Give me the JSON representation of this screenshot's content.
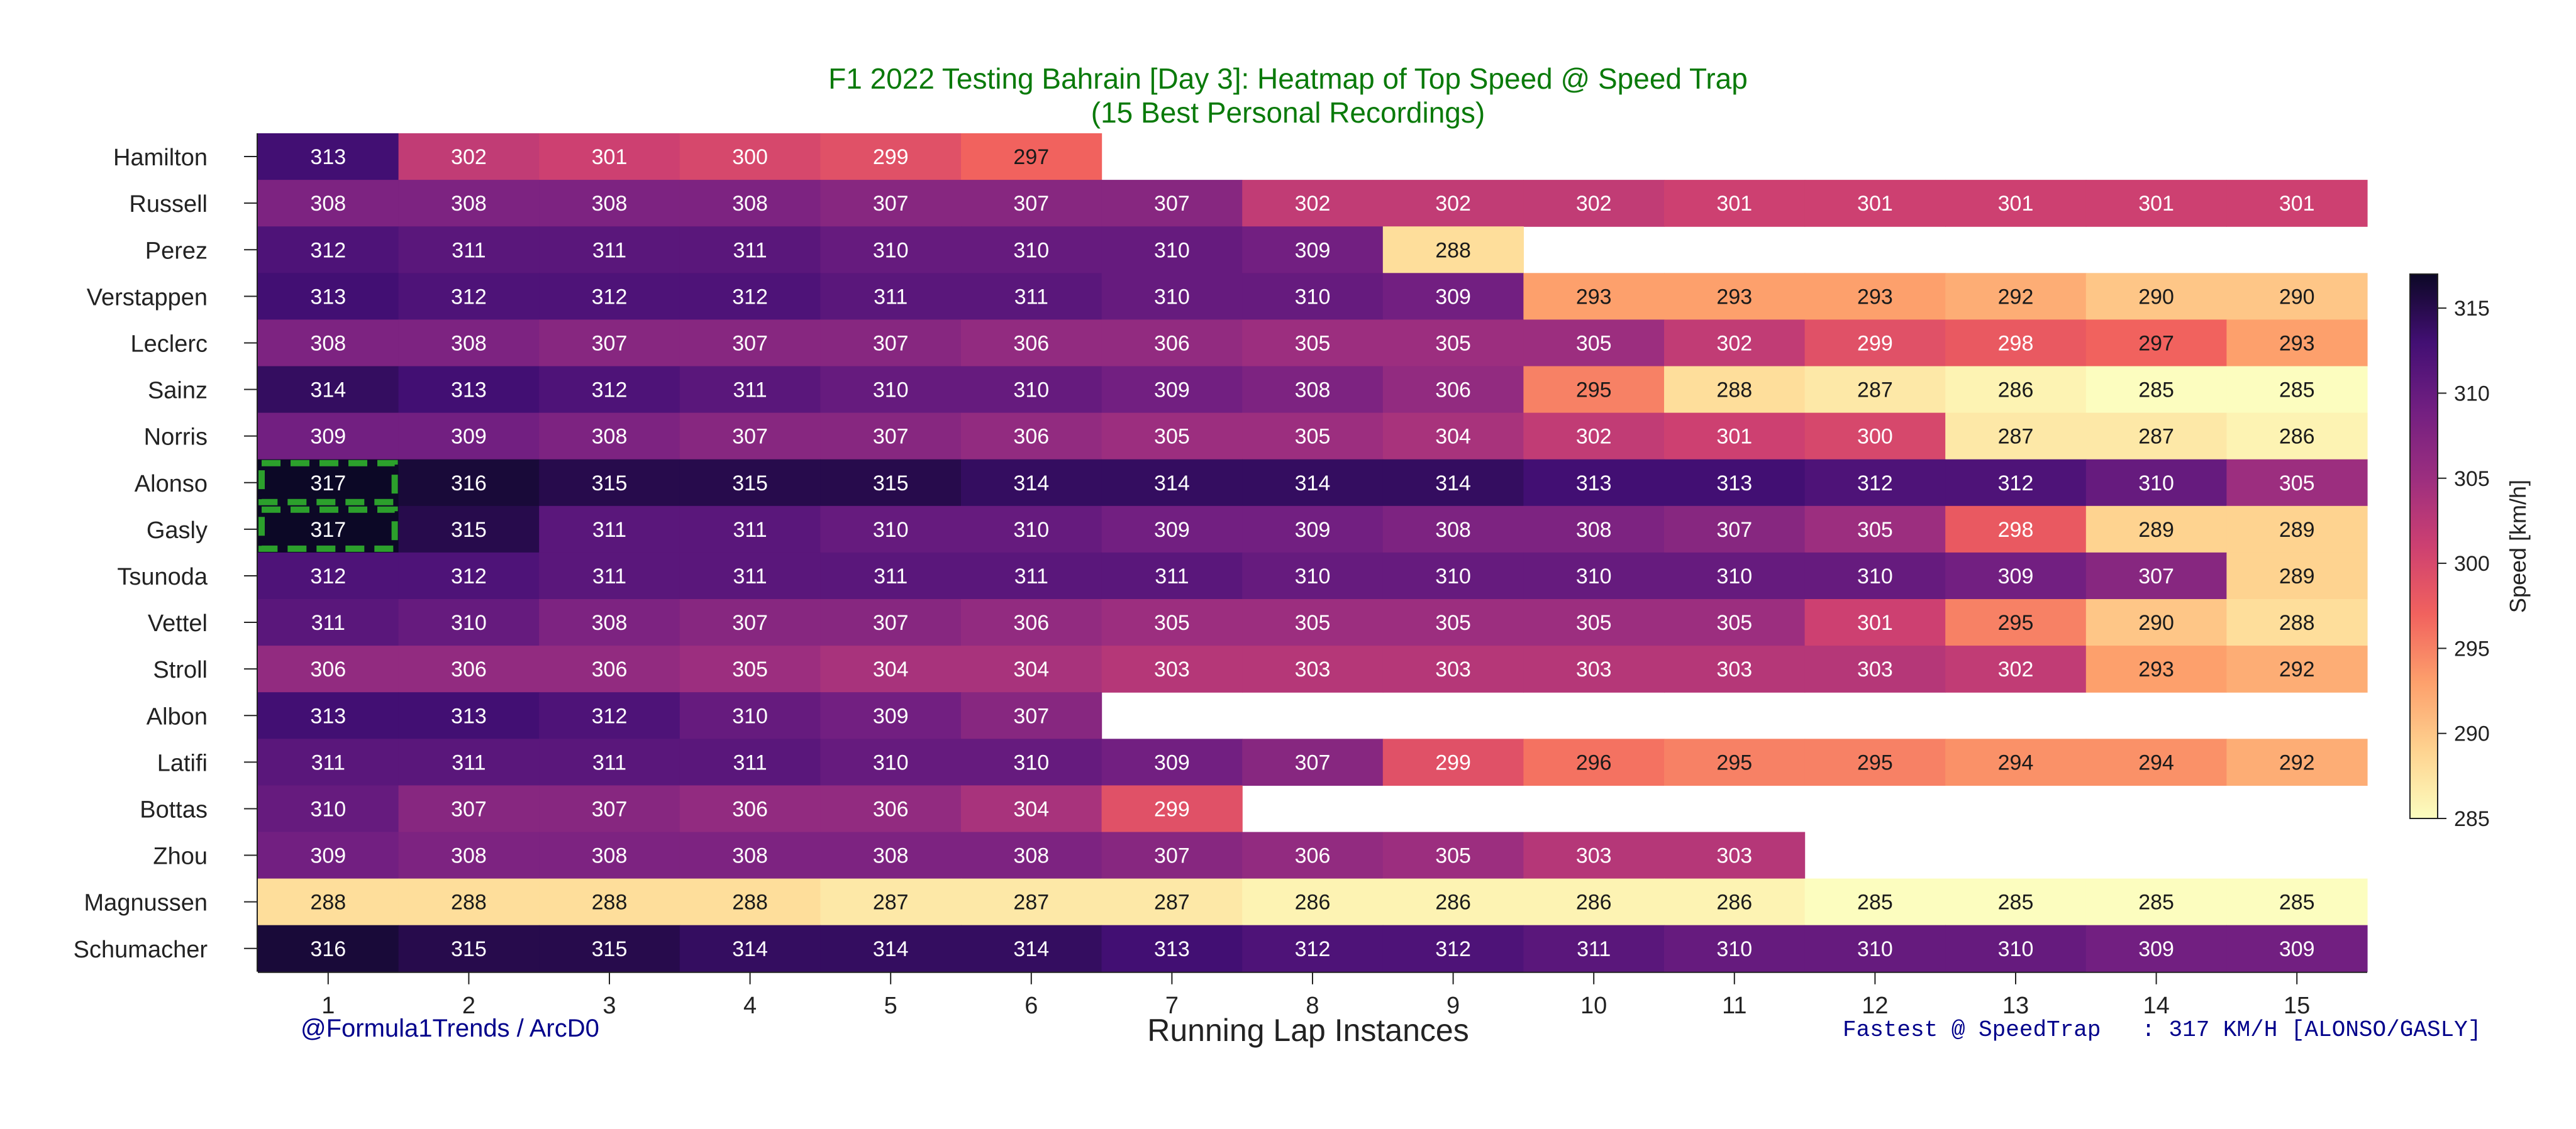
{
  "title": "F1 2022 Testing Bahrain [Day 3]: Heatmap of Top Speed @ Speed Trap",
  "subtitle": "(15 Best Personal Recordings)",
  "credit": "@Formula1Trends / ArcD0",
  "fastest_note": "Fastest @ SpeedTrap   : 317 KM/H [ALONSO/GASLY]",
  "chart_data": {
    "type": "heatmap",
    "title": "F1 2022 Testing Bahrain [Day 3]: Heatmap of Top Speed @ Speed Trap",
    "subtitle": "(15 Best Personal Recordings)",
    "xlabel": "Running Lap Instances",
    "colorbar_label": "Speed [km/h]",
    "colormap": "magma_r",
    "vmin": 285,
    "vmax": 317,
    "colorbar_ticks": [
      285,
      290,
      295,
      300,
      305,
      310,
      315
    ],
    "x": [
      1,
      2,
      3,
      4,
      5,
      6,
      7,
      8,
      9,
      10,
      11,
      12,
      13,
      14,
      15
    ],
    "rows": [
      {
        "driver": "Hamilton",
        "values": [
          313,
          302,
          301,
          300,
          299,
          297
        ]
      },
      {
        "driver": "Russell",
        "values": [
          308,
          308,
          308,
          308,
          307,
          307,
          307,
          302,
          302,
          302,
          301,
          301,
          301,
          301,
          301
        ]
      },
      {
        "driver": "Perez",
        "values": [
          312,
          311,
          311,
          311,
          310,
          310,
          310,
          309,
          288
        ]
      },
      {
        "driver": "Verstappen",
        "values": [
          313,
          312,
          312,
          312,
          311,
          311,
          310,
          310,
          309,
          293,
          293,
          293,
          292,
          290,
          290
        ]
      },
      {
        "driver": "Leclerc",
        "values": [
          308,
          308,
          307,
          307,
          307,
          306,
          306,
          305,
          305,
          305,
          302,
          299,
          298,
          297,
          293
        ]
      },
      {
        "driver": "Sainz",
        "values": [
          314,
          313,
          312,
          311,
          310,
          310,
          309,
          308,
          306,
          295,
          288,
          287,
          286,
          285,
          285
        ]
      },
      {
        "driver": "Norris",
        "values": [
          309,
          309,
          308,
          307,
          307,
          306,
          305,
          305,
          304,
          302,
          301,
          300,
          287,
          287,
          286
        ]
      },
      {
        "driver": "Alonso",
        "values": [
          317,
          316,
          315,
          315,
          315,
          314,
          314,
          314,
          314,
          313,
          313,
          312,
          312,
          310,
          305
        ]
      },
      {
        "driver": "Gasly",
        "values": [
          317,
          315,
          311,
          311,
          310,
          310,
          309,
          309,
          308,
          308,
          307,
          305,
          298,
          289,
          289
        ]
      },
      {
        "driver": "Tsunoda",
        "values": [
          312,
          312,
          311,
          311,
          311,
          311,
          311,
          310,
          310,
          310,
          310,
          310,
          309,
          307,
          289
        ]
      },
      {
        "driver": "Vettel",
        "values": [
          311,
          310,
          308,
          307,
          307,
          306,
          305,
          305,
          305,
          305,
          305,
          301,
          295,
          290,
          288
        ]
      },
      {
        "driver": "Stroll",
        "values": [
          306,
          306,
          306,
          305,
          304,
          304,
          303,
          303,
          303,
          303,
          303,
          303,
          302,
          293,
          292
        ]
      },
      {
        "driver": "Albon",
        "values": [
          313,
          313,
          312,
          310,
          309,
          307
        ]
      },
      {
        "driver": "Latifi",
        "values": [
          311,
          311,
          311,
          311,
          310,
          310,
          309,
          307,
          299,
          296,
          295,
          295,
          294,
          294,
          292
        ]
      },
      {
        "driver": "Bottas",
        "values": [
          310,
          307,
          307,
          306,
          306,
          304,
          299
        ]
      },
      {
        "driver": "Zhou",
        "values": [
          309,
          308,
          308,
          308,
          308,
          308,
          307,
          306,
          305,
          303,
          303
        ]
      },
      {
        "driver": "Magnussen",
        "values": [
          288,
          288,
          288,
          288,
          287,
          287,
          287,
          286,
          286,
          286,
          286,
          285,
          285,
          285,
          285
        ]
      },
      {
        "driver": "Schumacher",
        "values": [
          316,
          315,
          315,
          314,
          314,
          314,
          313,
          312,
          312,
          311,
          310,
          310,
          310,
          309,
          309
        ]
      }
    ],
    "highlight": {
      "drivers": [
        "Alonso",
        "Gasly"
      ],
      "lap": 1,
      "style": "dashed green box"
    }
  }
}
